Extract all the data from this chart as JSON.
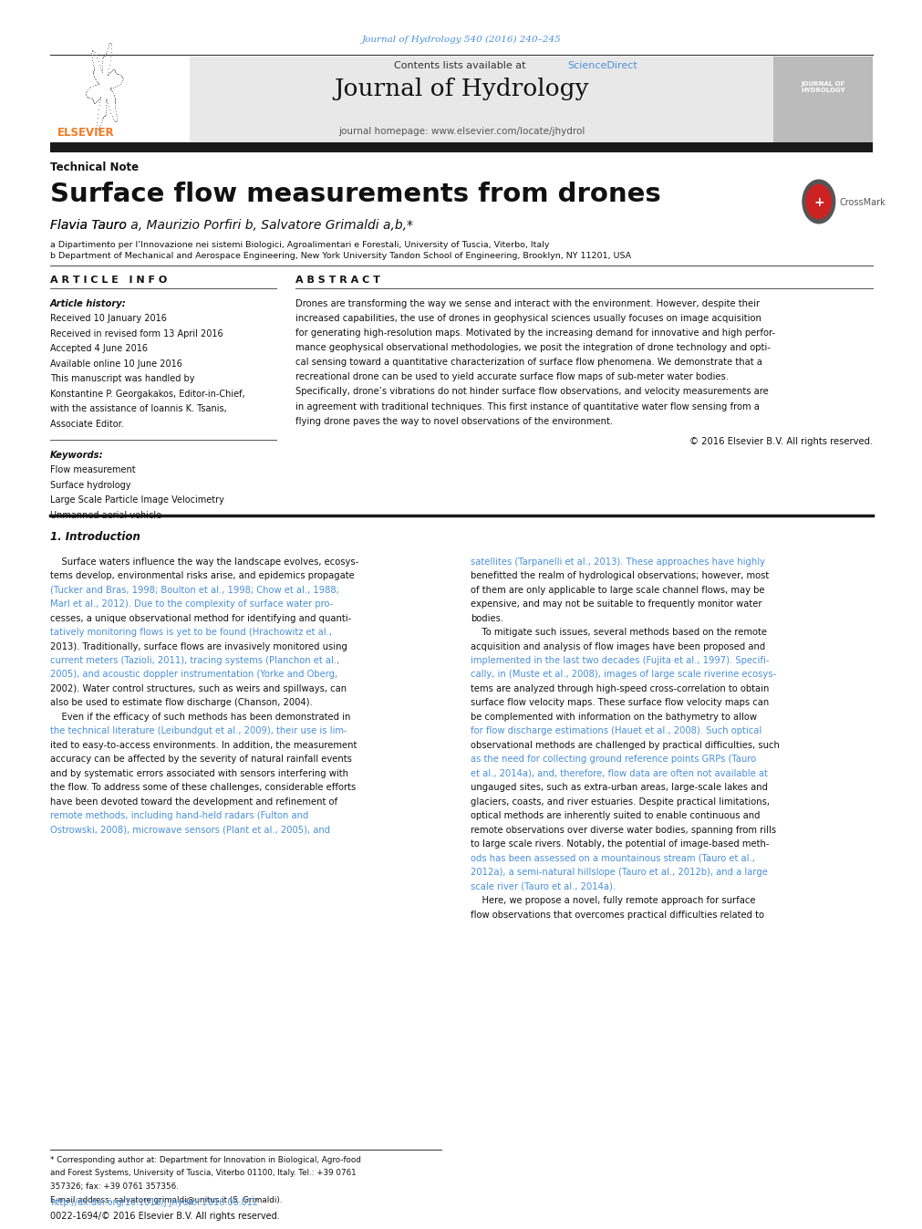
{
  "page_width": 9.92,
  "page_height": 13.23,
  "bg_color": "#ffffff",
  "journal_ref": "Journal of Hydrology 540 (2016) 240–245",
  "journal_ref_color": "#4a90d9",
  "journal_name": "Journal of Hydrology",
  "contents_line": "Contents lists available at ScienceDirect",
  "sciencedirect_color": "#4a90d9",
  "homepage_line": "journal homepage: www.elsevier.com/locate/jhydrol",
  "header_bg": "#e8e8e8",
  "thick_bar_color": "#1a1a1a",
  "thin_bar_color": "#555555",
  "section_label": "Technical Note",
  "paper_title": "Surface flow measurements from drones",
  "authors": "Flavia Tauro a, Maurizio Porfiri b, Salvatore Grimaldi a,b,*",
  "affil_a": "a Dipartimento per l’Innovazione nei sistemi Biologici, Agroalimentari e Forestali, University of Tuscia, Viterbo, Italy",
  "affil_b": "b Department of Mechanical and Aerospace Engineering, New York University Tandon School of Engineering, Brooklyn, NY 11201, USA",
  "article_info_header": "A R T I C L E   I N F O",
  "abstract_header": "A B S T R A C T",
  "article_history_label": "Article history:",
  "received": "Received 10 January 2016",
  "received_revised": "Received in revised form 13 April 2016",
  "accepted": "Accepted 4 June 2016",
  "available": "Available online 10 June 2016",
  "handled_by_lines": [
    "This manuscript was handled by",
    "Konstantine P. Georgakakos, Editor-in-Chief,",
    "with the assistance of Ioannis K. Tsanis,",
    "Associate Editor."
  ],
  "keywords_label": "Keywords:",
  "keywords": [
    "Flow measurement",
    "Surface hydrology",
    "Large Scale Particle Image Velocimetry",
    "Unmanned aerial vehicle"
  ],
  "abstract_lines": [
    "Drones are transforming the way we sense and interact with the environment. However, despite their",
    "increased capabilities, the use of drones in geophysical sciences usually focuses on image acquisition",
    "for generating high-resolution maps. Motivated by the increasing demand for innovative and high perfor-",
    "mance geophysical observational methodologies, we posit the integration of drone technology and opti-",
    "cal sensing toward a quantitative characterization of surface flow phenomena. We demonstrate that a",
    "recreational drone can be used to yield accurate surface flow maps of sub-meter water bodies.",
    "Specifically, drone’s vibrations do not hinder surface flow observations, and velocity measurements are",
    "in agreement with traditional techniques. This first instance of quantitative water flow sensing from a",
    "flying drone paves the way to novel observations of the environment."
  ],
  "copyright": "© 2016 Elsevier B.V. All rights reserved.",
  "intro_heading": "1. Introduction",
  "intro_col1_lines": [
    "    Surface waters influence the way the landscape evolves, ecosys-",
    "tems develop, environmental risks arise, and epidemics propagate",
    "(Tucker and Bras, 1998; Boulton et al., 1998; Chow et al., 1988;",
    "Marl et al., 2012). Due to the complexity of surface water pro-",
    "cesses, a unique observational method for identifying and quanti-",
    "tatively monitoring flows is yet to be found (Hrachowitz et al.,",
    "2013). Traditionally, surface flows are invasively monitored using",
    "current meters (Tazioli, 2011), tracing systems (Planchon et al.,",
    "2005), and acoustic doppler instrumentation (Yorke and Oberg,",
    "2002). Water control structures, such as weirs and spillways, can",
    "also be used to estimate flow discharge (Chanson, 2004).",
    "    Even if the efficacy of such methods has been demonstrated in",
    "the technical literature (Leibundgut et al., 2009), their use is lim-",
    "ited to easy-to-access environments. In addition, the measurement",
    "accuracy can be affected by the severity of natural rainfall events",
    "and by systematic errors associated with sensors interfering with",
    "the flow. To address some of these challenges, considerable efforts",
    "have been devoted toward the development and refinement of",
    "remote methods, including hand-held radars (Fulton and",
    "Ostrowski, 2008), microwave sensors (Plant et al., 2005), and"
  ],
  "intro_col1_link_lines": [
    2,
    3,
    5,
    7,
    8,
    12,
    18,
    19
  ],
  "intro_col2_lines": [
    "satellites (Tarpanelli et al., 2013). These approaches have highly",
    "benefitted the realm of hydrological observations; however, most",
    "of them are only applicable to large scale channel flows, may be",
    "expensive, and may not be suitable to frequently monitor water",
    "bodies.",
    "    To mitigate such issues, several methods based on the remote",
    "acquisition and analysis of flow images have been proposed and",
    "implemented in the last two decades (Fujita et al., 1997). Specifi-",
    "cally, in (Muste et al., 2008), images of large scale riverine ecosys-",
    "tems are analyzed through high-speed cross-correlation to obtain",
    "surface flow velocity maps. These surface flow velocity maps can",
    "be complemented with information on the bathymetry to allow",
    "for flow discharge estimations (Hauet et al., 2008). Such optical",
    "observational methods are challenged by practical difficulties, such",
    "as the need for collecting ground reference points GRPs (Tauro",
    "et al., 2014a), and, therefore, flow data are often not available at",
    "ungauged sites, such as extra-urban areas, large-scale lakes and",
    "glaciers, coasts, and river estuaries. Despite practical limitations,",
    "optical methods are inherently suited to enable continuous and",
    "remote observations over diverse water bodies, spanning from rills",
    "to large scale rivers. Notably, the potential of image-based meth-",
    "ods has been assessed on a mountainous stream (Tauro et al.,",
    "2012a), a semi-natural hillslope (Tauro et al., 2012b), and a large",
    "scale river (Tauro et al., 2014a).",
    "    Here, we propose a novel, fully remote approach for surface",
    "flow observations that overcomes practical difficulties related to"
  ],
  "intro_col2_link_lines": [
    0,
    7,
    8,
    12,
    14,
    15,
    21,
    22,
    23
  ],
  "footer_doi": "http://dx.doi.org/10.1016/j.jhydrol.2016.06.012",
  "footer_issn": "0022-1694/© 2016 Elsevier B.V. All rights reserved.",
  "link_color": "#4a90d9",
  "elsevier_orange": "#f47920",
  "footnote_lines": [
    "* Corresponding author at: Department for Innovation in Biological, Agro-food",
    "and Forest Systems, University of Tuscia, Viterbo 01100, Italy. Tel.: +39 0761",
    "357326; fax: +39 0761 357356.",
    "E-mail address: salvatore.grimaldi@unitus.it (S. Grimaldi)."
  ]
}
